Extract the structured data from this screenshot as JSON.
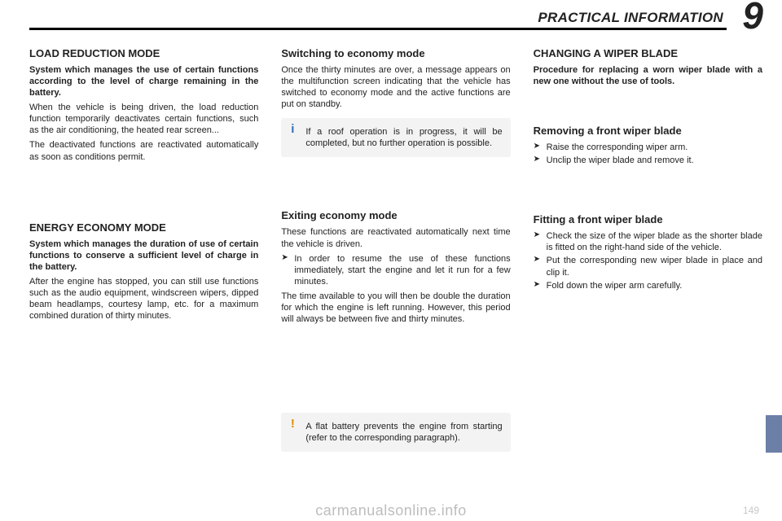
{
  "header": {
    "title": "PRACTICAL INFORMATION",
    "chapter_number": "9"
  },
  "col1": {
    "load_reduction": {
      "heading": "LOAD REDUCTION MODE",
      "p1": "System which manages the use of certain functions according to the level of charge remaining in the battery.",
      "p2": "When the vehicle is being driven, the load reduction function temporarily deactivates certain functions, such as the air conditioning, the heated rear screen...",
      "p3": "The deactivated functions are reactivated automatically as soon as conditions permit."
    },
    "energy_economy": {
      "heading": "ENERGY ECONOMY MODE",
      "p1": "System which manages the duration of use of certain functions to conserve a sufficient level of charge in the battery.",
      "p2": "After the engine has stopped, you can still use functions such as the audio equipment, windscreen wipers, dipped beam headlamps, courtesy lamp, etc. for a maximum combined duration of thirty minutes."
    }
  },
  "col2": {
    "switching": {
      "heading": "Switching to economy mode",
      "p1": "Once the thirty minutes are over, a message appears on the multifunction screen indicating that the vehicle has switched to economy mode and the active functions are put on standby."
    },
    "info_callout": "If a roof operation is in progress, it will be completed, but no further operation is possible.",
    "exiting": {
      "heading": "Exiting economy mode",
      "p1": "These functions are reactivated automatically next time the vehicle is driven.",
      "li1": "In order to resume the use of these functions immediately, start the engine and let it run for a few minutes.",
      "p2": "The time available to you will then be double the duration for which the engine is left running. However, this period will always be between five and thirty minutes."
    },
    "warn_callout": "A flat battery prevents the engine from starting (refer to the corresponding paragraph)."
  },
  "col3": {
    "changing": {
      "heading": "CHANGING A WIPER BLADE",
      "p1": "Procedure for replacing a worn wiper blade with a new one without the use of tools."
    },
    "removing": {
      "heading": "Removing a front wiper blade",
      "li1": "Raise the corresponding wiper arm.",
      "li2": "Unclip the wiper blade and remove it."
    },
    "fitting": {
      "heading": "Fitting a front wiper blade",
      "li1": "Check the size of the wiper blade as the shorter blade is fitted on the right-hand side of the vehicle.",
      "li2": "Put the corresponding new wiper blade in place and clip it.",
      "li3": "Fold down the wiper arm carefully."
    }
  },
  "footer": {
    "page_number": "149",
    "watermark": "carmanualsonline.info"
  },
  "colors": {
    "text": "#222222",
    "rule": "#000000",
    "callout_bg": "#f3f3f3",
    "info_badge": "#2f6fb3",
    "warn_badge": "#e08a00",
    "edge_tab": "#6c7fa6",
    "watermark": "#bdbdbd",
    "pageno": "#c9c9c9"
  }
}
